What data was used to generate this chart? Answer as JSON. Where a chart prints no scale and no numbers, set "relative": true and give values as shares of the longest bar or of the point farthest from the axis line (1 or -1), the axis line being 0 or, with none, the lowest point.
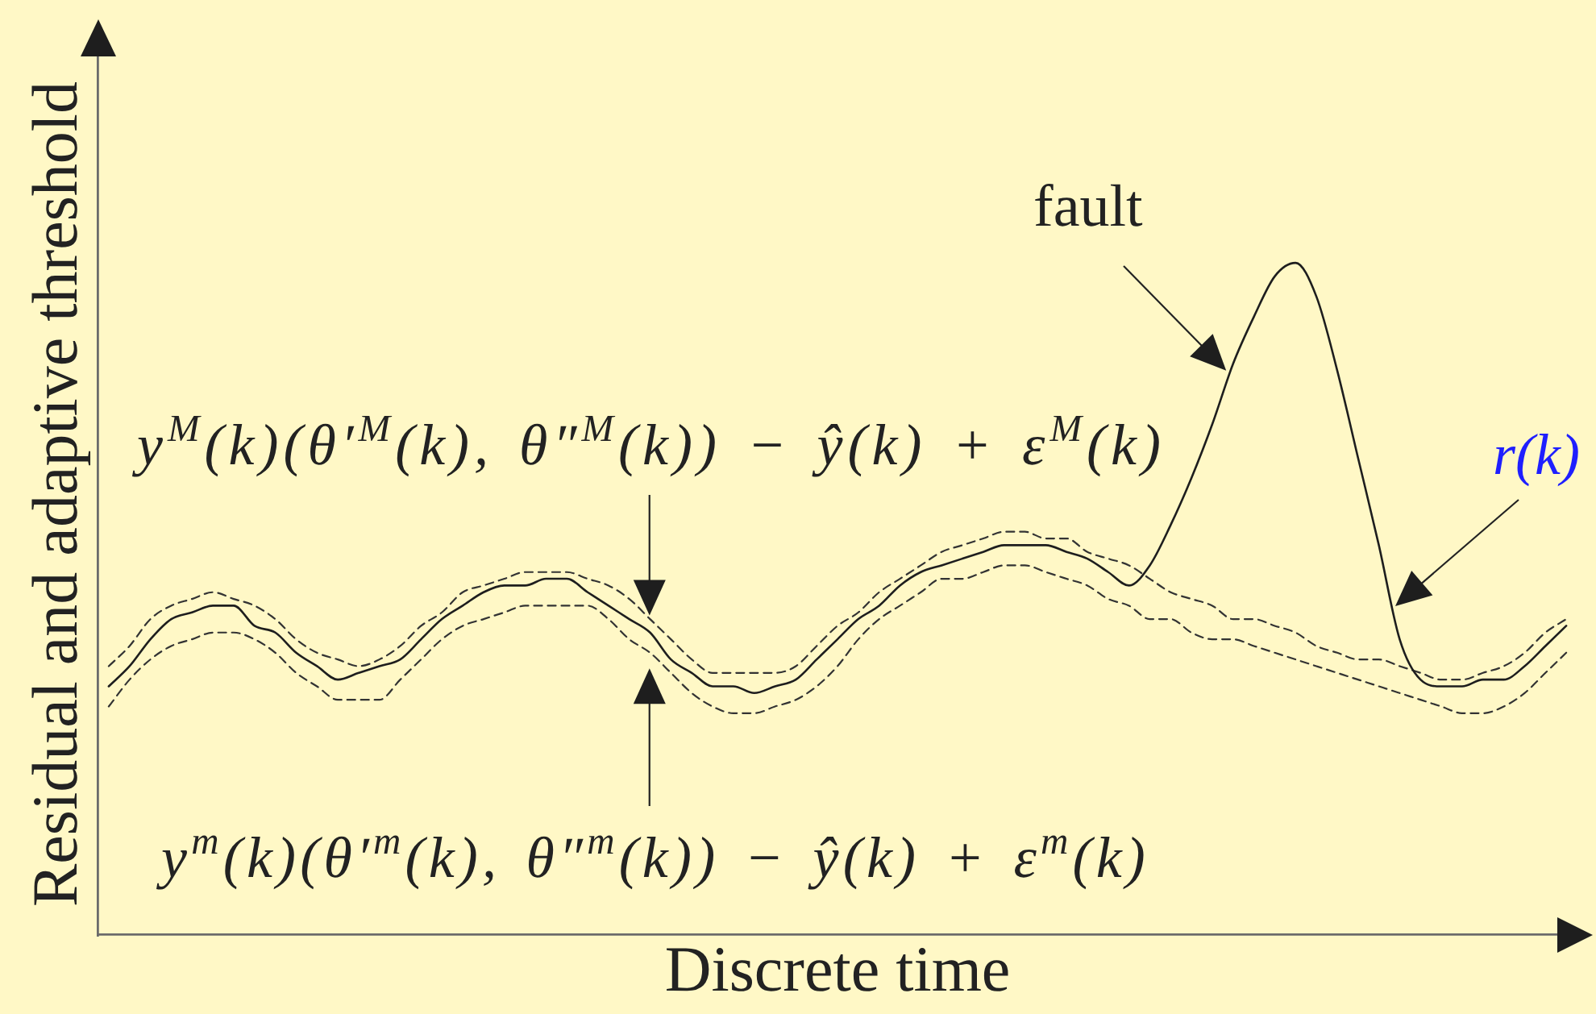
{
  "chart_data": {
    "type": "line",
    "xlabel": "Discrete time",
    "ylabel": "Residual and adaptive threshold",
    "relative": true,
    "tick_labels": false,
    "marker": "none",
    "categories": [
      null,
      null,
      null,
      null,
      null,
      null,
      null,
      null,
      null,
      null,
      null,
      null,
      null,
      null,
      null,
      null,
      null,
      null,
      null,
      null,
      null,
      null,
      null,
      null,
      null,
      null,
      null,
      null,
      null,
      null,
      null,
      null,
      null,
      null,
      null,
      null,
      null,
      null,
      null,
      null,
      null,
      null,
      null,
      null,
      null,
      null,
      null,
      null,
      null,
      null,
      null,
      null,
      null,
      null,
      null,
      null,
      null,
      null,
      null,
      null,
      null,
      null,
      null,
      null,
      null,
      null,
      null,
      null,
      null,
      null,
      null
    ],
    "series": [
      {
        "name": "r(k)",
        "color": "#1e1e1e",
        "line_style": "solid",
        "values": [
          0.37,
          0.4,
          0.44,
          0.47,
          0.48,
          0.49,
          0.49,
          0.46,
          0.45,
          0.42,
          0.4,
          0.38,
          0.39,
          0.4,
          0.41,
          0.44,
          0.47,
          0.49,
          0.51,
          0.52,
          0.52,
          0.53,
          0.53,
          0.51,
          0.49,
          0.47,
          0.45,
          0.41,
          0.39,
          0.37,
          0.37,
          0.36,
          0.37,
          0.38,
          0.41,
          0.44,
          0.47,
          0.49,
          0.52,
          0.54,
          0.55,
          0.56,
          0.57,
          0.58,
          0.58,
          0.58,
          0.57,
          0.56,
          0.54,
          0.52,
          0.55,
          0.61,
          0.68,
          0.76,
          0.85,
          0.92,
          0.98,
          1,
          0.95,
          0.84,
          0.71,
          0.58,
          0.44,
          0.38,
          0.37,
          0.37,
          0.38,
          0.38,
          0.4,
          0.43,
          0.46
        ]
      },
      {
        "name": "y$^{M}$(k)(θ′$^{M}$(k), θ″$^{M}$(k)) − ŷ(k) + ε$^{M}$(k)",
        "color": "#333333",
        "line_style": "dashed",
        "values": [
          0.4,
          0.43,
          0.47,
          0.49,
          0.5,
          0.51,
          0.5,
          0.49,
          0.47,
          0.44,
          0.42,
          0.41,
          0.4,
          0.41,
          0.43,
          0.46,
          0.48,
          0.51,
          0.52,
          0.53,
          0.54,
          0.54,
          0.54,
          0.53,
          0.52,
          0.5,
          0.47,
          0.44,
          0.41,
          0.39,
          0.39,
          0.39,
          0.39,
          0.4,
          0.43,
          0.46,
          0.48,
          0.51,
          0.53,
          0.55,
          0.57,
          0.58,
          0.59,
          0.6,
          0.6,
          0.59,
          0.59,
          0.57,
          0.56,
          0.55,
          0.53,
          0.51,
          0.5,
          0.49,
          0.47,
          0.47,
          0.46,
          0.45,
          0.43,
          0.42,
          0.41,
          0.41,
          0.4,
          0.39,
          0.38,
          0.38,
          0.39,
          0.4,
          0.42,
          0.45,
          0.47
        ]
      },
      {
        "name": "y$^{m}$(k)(θ′$^{m}$(k), θ″$^{m}$(k)) − ŷ(k) + ε$^{m}$(k)",
        "color": "#333333",
        "line_style": "dashed",
        "values": [
          0.34,
          0.38,
          0.41,
          0.43,
          0.44,
          0.45,
          0.45,
          0.44,
          0.42,
          0.39,
          0.37,
          0.35,
          0.35,
          0.35,
          0.38,
          0.41,
          0.44,
          0.46,
          0.47,
          0.48,
          0.49,
          0.49,
          0.49,
          0.49,
          0.47,
          0.44,
          0.42,
          0.39,
          0.36,
          0.34,
          0.33,
          0.33,
          0.34,
          0.35,
          0.37,
          0.4,
          0.44,
          0.47,
          0.49,
          0.51,
          0.53,
          0.53,
          0.54,
          0.55,
          0.55,
          0.54,
          0.53,
          0.52,
          0.5,
          0.49,
          0.47,
          0.47,
          0.45,
          0.44,
          0.44,
          0.43,
          0.42,
          0.41,
          0.4,
          0.39,
          0.38,
          0.37,
          0.36,
          0.35,
          0.34,
          0.33,
          0.33,
          0.34,
          0.36,
          0.39,
          0.42
        ]
      }
    ],
    "annotations": [
      "fault"
    ]
  }
}
